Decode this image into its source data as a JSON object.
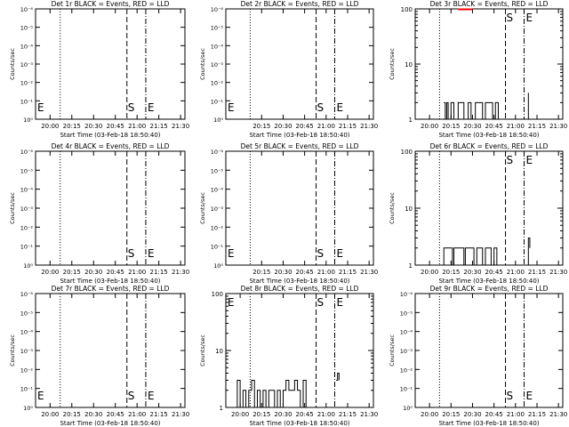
{
  "chart_data": [
    {
      "type": "line",
      "title": "Det 1r BLACK = Events, RED = LLD",
      "xlabel": "Start Time (03-Feb-18 18:50:40)",
      "ylabel": "Counts/sec",
      "yscale": "log",
      "ytick_labels": [
        "10⁰",
        "10⁻¹",
        "10⁻²",
        "10⁻³",
        "10⁻⁴",
        "10⁻⁵",
        "10⁻⁶"
      ],
      "xtick_labels": [
        "20:00",
        "20:15",
        "20:30",
        "20:45",
        "21:00",
        "21:15",
        "21:30"
      ],
      "markers": [
        {
          "label": "E",
          "pos": "left"
        },
        {
          "label": "S",
          "pos": "start"
        },
        {
          "label": "E",
          "pos": "end"
        }
      ],
      "series": []
    },
    {
      "type": "line",
      "title": "Det 2r BLACK = Events, RED = LLD",
      "xlabel": "Start Time (03-Feb-18 18:50:40)",
      "ylabel": "Counts/sec",
      "yscale": "log",
      "ytick_labels": [
        "10⁰",
        "10⁻¹",
        "10⁻²",
        "10⁻³",
        "10⁻⁴",
        "10⁻⁵",
        "10⁻⁶"
      ],
      "xtick_labels": [
        "20:15",
        "20:30",
        "20:45",
        "21:00",
        "21:15",
        "21:30"
      ],
      "markers": [
        {
          "label": "E",
          "pos": "left"
        },
        {
          "label": "S",
          "pos": "start"
        },
        {
          "label": "E",
          "pos": "end"
        }
      ],
      "series": []
    },
    {
      "type": "line",
      "title": "Det 3r BLACK = Events, RED = LLD",
      "xlabel": "Start Time (03-Feb-18 18:50:40)",
      "ylabel": "Counts/sec",
      "yscale": "log",
      "ytick_labels": [
        "1",
        "10",
        "100"
      ],
      "xtick_labels": [
        "20:00",
        "20:15",
        "20:30",
        "20:45",
        "21:00",
        "21:15",
        "21:30"
      ],
      "markers": [
        {
          "label": "S",
          "pos": "start"
        },
        {
          "label": "E",
          "pos": "end"
        }
      ],
      "series": [
        {
          "color": "#000000",
          "t": [
            "20:10",
            "20:11",
            "20:12",
            "20:13",
            "20:15",
            "20:16",
            "20:17",
            "20:20",
            "20:24",
            "20:27",
            "20:29",
            "20:32",
            "20:34",
            "20:37",
            "20:39",
            "20:42",
            "20:44",
            "20:46",
            "20:48"
          ],
          "values": [
            2,
            1,
            2,
            1,
            2,
            2,
            1,
            2,
            1,
            2,
            1,
            2,
            2,
            1,
            2,
            2,
            1,
            2,
            1
          ]
        },
        {
          "color": "#000000",
          "t": [
            "21:08",
            "21:09"
          ],
          "values": [
            1,
            3
          ]
        },
        {
          "color": "#ff0000",
          "t": [
            "20:20",
            "20:30"
          ],
          "values": [
            98,
            98
          ]
        }
      ]
    },
    {
      "type": "line",
      "title": "Det 4r BLACK = Events, RED = LLD",
      "xlabel": "Start Time (03-Feb-18 18:50:40)",
      "ylabel": "Counts/sec",
      "yscale": "log",
      "ytick_labels": [
        "10⁰",
        "10⁻¹",
        "10⁻²",
        "10⁻³",
        "10⁻⁴",
        "10⁻⁵",
        "10⁻⁶"
      ],
      "xtick_labels": [
        "20:00",
        "20:15",
        "20:30",
        "20:45",
        "21:00",
        "21:15",
        "21:30"
      ],
      "markers": [
        {
          "label": "S",
          "pos": "start"
        },
        {
          "label": "E",
          "pos": "end"
        }
      ],
      "series": []
    },
    {
      "type": "line",
      "title": "Det 5r BLACK = Events, RED = LLD",
      "xlabel": "Start Time (03-Feb-18 18:50:40)",
      "ylabel": "Counts/sec",
      "yscale": "log",
      "ytick_labels": [
        "10⁰",
        "10⁻¹",
        "10⁻²",
        "10⁻³",
        "10⁻⁴",
        "10⁻⁵",
        "10⁻⁶"
      ],
      "xtick_labels": [
        "20:15",
        "20:30",
        "20:45",
        "21:00",
        "21:15",
        "21:30"
      ],
      "markers": [
        {
          "label": "E",
          "pos": "left"
        },
        {
          "label": "S",
          "pos": "start"
        },
        {
          "label": "E",
          "pos": "end"
        }
      ],
      "series": []
    },
    {
      "type": "line",
      "title": "Det 6r BLACK = Events, RED = LLD",
      "xlabel": "Start Time (03-Feb-18 18:50:40)",
      "ylabel": "Counts/sec",
      "yscale": "log",
      "ytick_labels": [
        "1",
        "10",
        "100"
      ],
      "xtick_labels": [
        "20:00",
        "20:15",
        "20:30",
        "20:45",
        "21:00",
        "21:15",
        "21:30"
      ],
      "markers": [
        {
          "label": "S",
          "pos": "start"
        },
        {
          "label": "E",
          "pos": "end"
        }
      ],
      "series": [
        {
          "color": "#000000",
          "t": [
            "20:09",
            "20:10",
            "20:16",
            "20:17",
            "20:24",
            "20:25",
            "20:31",
            "20:33",
            "20:35",
            "20:37",
            "20:39",
            "20:41",
            "20:43",
            "20:45",
            "20:47"
          ],
          "values": [
            1,
            2,
            1,
            2,
            1,
            2,
            1,
            2,
            2,
            1,
            2,
            2,
            1,
            2,
            1
          ]
        },
        {
          "color": "#000000",
          "t": [
            "21:08",
            "21:09",
            "21:10"
          ],
          "values": [
            1,
            3,
            2
          ]
        }
      ]
    },
    {
      "type": "line",
      "title": "Det 7r BLACK = Events, RED = LLD",
      "xlabel": "Start Time (03-Feb-18 18:50:40)",
      "ylabel": "Counts/sec",
      "yscale": "log",
      "ytick_labels": [
        "10⁰",
        "10⁻¹",
        "10⁻²",
        "10⁻³",
        "10⁻⁴",
        "10⁻⁵",
        "10⁻⁶"
      ],
      "xtick_labels": [
        "20:00",
        "20:15",
        "20:30",
        "20:45",
        "21:00",
        "21:15",
        "21:30"
      ],
      "markers": [
        {
          "label": "E",
          "pos": "left"
        },
        {
          "label": "S",
          "pos": "start"
        },
        {
          "label": "E",
          "pos": "end"
        }
      ],
      "series": []
    },
    {
      "type": "line",
      "title": "Det 8r BLACK = Events, RED = LLD",
      "xlabel": "Start Time (03-Feb-18 18:50:40)",
      "ylabel": "Counts/sec",
      "yscale": "log",
      "ytick_labels": [
        "1",
        "10",
        "100"
      ],
      "xtick_labels": [
        "20:00",
        "20:15",
        "20:30",
        "20:45",
        "21:00",
        "21:15",
        "21:30"
      ],
      "markers": [
        {
          "label": "E",
          "pos": "left"
        },
        {
          "label": "S",
          "pos": "start"
        },
        {
          "label": "E",
          "pos": "end"
        }
      ],
      "series": [
        {
          "color": "#000000",
          "t": [
            "19:56",
            "19:58",
            "20:00",
            "20:02",
            "20:04",
            "20:06",
            "20:08",
            "20:10",
            "20:12",
            "20:14",
            "20:16",
            "20:18",
            "20:20",
            "20:22",
            "20:24",
            "20:26",
            "20:28",
            "20:30",
            "20:32",
            "20:34",
            "20:36",
            "20:38",
            "20:40",
            "20:42",
            "20:44",
            "20:46"
          ],
          "values": [
            1,
            3,
            1,
            2,
            1,
            2,
            3,
            1,
            2,
            1,
            2,
            1,
            2,
            2,
            1,
            2,
            1,
            2,
            3,
            2,
            2,
            3,
            2,
            1,
            3,
            1
          ]
        },
        {
          "color": "#000000",
          "t": [
            "21:07",
            "21:08",
            "21:09"
          ],
          "values": [
            3,
            4,
            3
          ]
        }
      ]
    },
    {
      "type": "line",
      "title": "Det 9r BLACK = Events, RED = LLD",
      "xlabel": "Start Time (03-Feb-18 18:50:40)",
      "ylabel": "Counts/sec",
      "yscale": "log",
      "ytick_labels": [
        "10⁰",
        "10⁻¹",
        "10⁻²",
        "10⁻³",
        "10⁻⁴",
        "10⁻⁵",
        "10⁻⁶"
      ],
      "xtick_labels": [
        "20:00",
        "20:15",
        "20:30",
        "20:45",
        "21:00",
        "21:15",
        "21:30"
      ],
      "markers": [
        {
          "label": "S",
          "pos": "start"
        },
        {
          "label": "E",
          "pos": "end"
        }
      ],
      "series": []
    }
  ],
  "time_axis": {
    "start": "19:50",
    "end": "21:33",
    "dotted": "20:07",
    "dashed": "20:53",
    "dashdot": "21:06"
  }
}
